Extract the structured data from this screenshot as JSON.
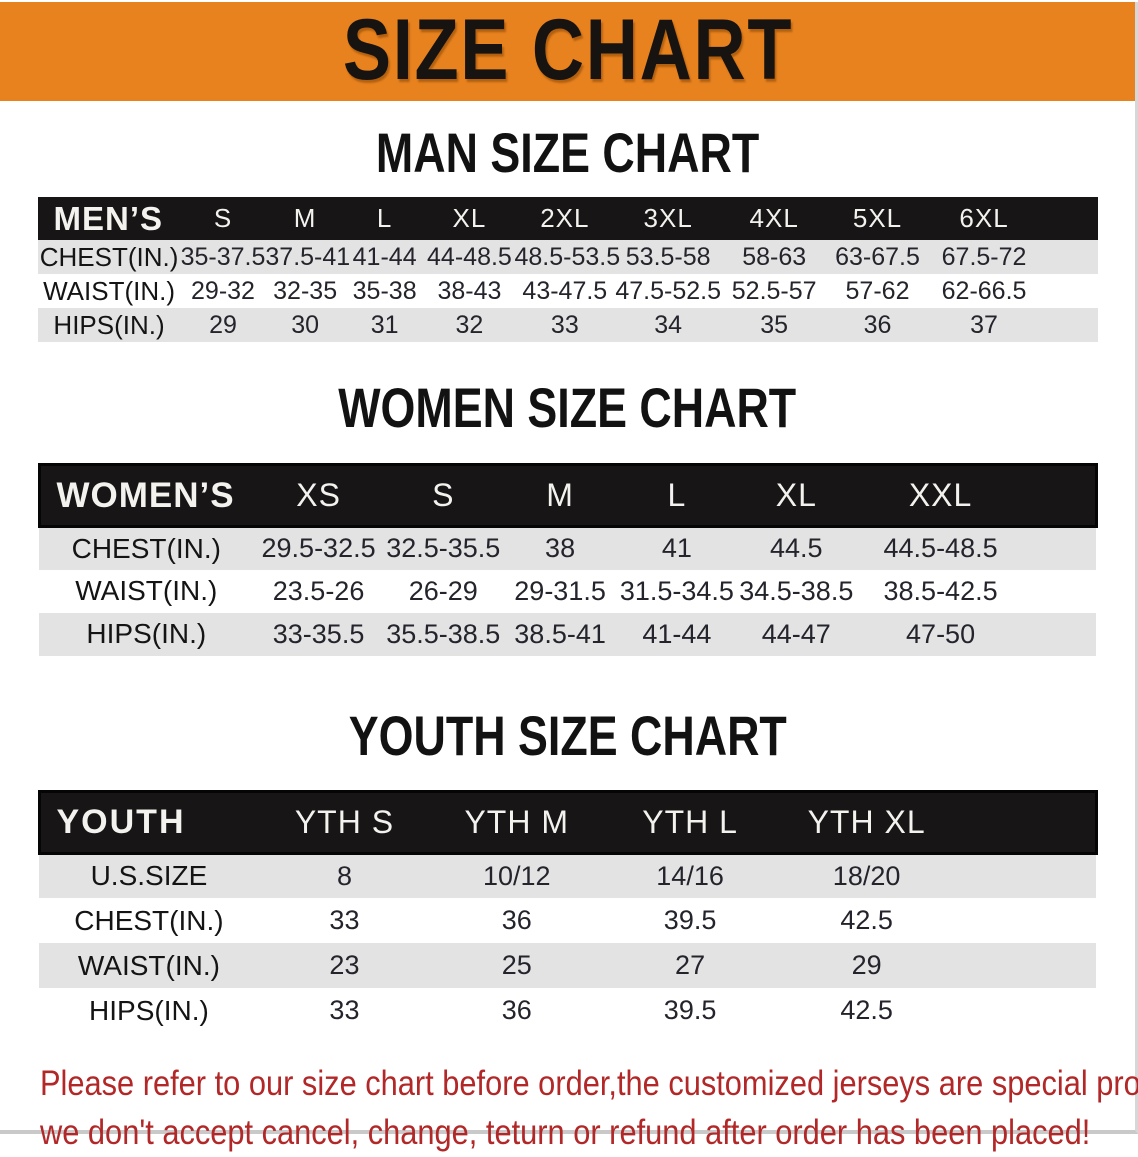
{
  "banner": {
    "title": "SIZE CHART",
    "bg_color": "#E8821E",
    "text_color": "#161310"
  },
  "men": {
    "title": "MAN SIZE CHART",
    "table": {
      "header": [
        "MEN’S",
        "S",
        "M",
        "L",
        "XL",
        "2XL",
        "3XL",
        "4XL",
        "5XL",
        "6XL"
      ],
      "rows": [
        [
          "CHEST(IN.)",
          "35-37.5",
          "37.5-41",
          "41-44",
          "44-48.5",
          "48.5-53.5",
          "53.5-58",
          "58-63",
          "63-67.5",
          "67.5-72"
        ],
        [
          "WAIST(IN.)",
          "29-32",
          "32-35",
          "35-38",
          "38-43",
          "43-47.5",
          "47.5-52.5",
          "52.5-57",
          "57-62",
          "62-66.5"
        ],
        [
          "HIPS(IN.)",
          "29",
          "30",
          "31",
          "32",
          "33",
          "34",
          "35",
          "36",
          "37"
        ]
      ]
    }
  },
  "women": {
    "title": "WOMEN SIZE CHART",
    "table": {
      "header": [
        "WOMEN’S",
        "XS",
        "S",
        "M",
        "L",
        "XL",
        "XXL"
      ],
      "rows": [
        [
          "CHEST(IN.)",
          "29.5-32.5",
          "32.5-35.5",
          "38",
          "41",
          "44.5",
          "44.5-48.5"
        ],
        [
          "WAIST(IN.)",
          "23.5-26",
          "26-29",
          "29-31.5",
          "31.5-34.5",
          "34.5-38.5",
          "38.5-42.5"
        ],
        [
          "HIPS(IN.)",
          "33-35.5",
          "35.5-38.5",
          "38.5-41",
          "41-44",
          "44-47",
          "47-50"
        ]
      ]
    }
  },
  "youth": {
    "title": "YOUTH SIZE CHART",
    "table": {
      "header": [
        "YOUTH",
        "YTH S",
        "YTH M",
        "YTH L",
        "YTH XL"
      ],
      "rows": [
        [
          "U.S.SIZE",
          "8",
          "10/12",
          "14/16",
          "18/20"
        ],
        [
          "CHEST(IN.)",
          "33",
          "36",
          "39.5",
          "42.5"
        ],
        [
          "WAIST(IN.)",
          "23",
          "25",
          "27",
          "29"
        ],
        [
          "HIPS(IN.)",
          "33",
          "36",
          "39.5",
          "42.5"
        ]
      ]
    }
  },
  "disclaimer": {
    "lines": [
      "Please refer to our size chart before order,the customized jerseys are special products,",
      "we don't accept cancel, change, teturn or refund after order has been placed!"
    ],
    "color": "#B22727"
  },
  "colors": {
    "header_bar": "#171515",
    "row_stripe": "#e3e3e3",
    "banner_orange": "#E8821E",
    "disclaimer_red": "#B22727"
  }
}
